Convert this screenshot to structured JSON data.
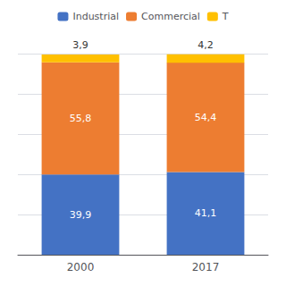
{
  "chart_data": {
    "type": "bar",
    "stacked": true,
    "data_labels": true,
    "categories": [
      "2000",
      "2017"
    ],
    "series": [
      {
        "name": "Industrial",
        "color": "#4472c4",
        "values": [
          39.9,
          41.1
        ],
        "value_labels": [
          "39,9",
          "41,1"
        ]
      },
      {
        "name": "Commercial",
        "color": "#ed7d31",
        "values": [
          55.8,
          54.4
        ],
        "value_labels": [
          "55,8",
          "54,4"
        ]
      },
      {
        "name": "T",
        "color": "#ffc000",
        "values": [
          3.9,
          4.2
        ],
        "value_labels": [
          "3,9",
          "4,2"
        ]
      }
    ],
    "ylim": [
      0,
      100
    ],
    "yticks": [
      0,
      20,
      40,
      60,
      80,
      100
    ],
    "grid": true,
    "legend": "top",
    "tick_labels": "x"
  }
}
